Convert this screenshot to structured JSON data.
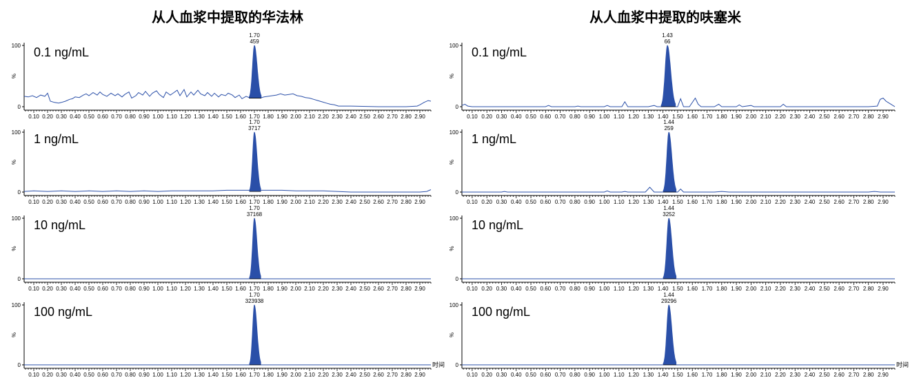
{
  "colors": {
    "peak": "#2a4fa8",
    "trace": "#2a4fa8",
    "axis": "#000000",
    "text": "#000000"
  },
  "chart_data": [
    {
      "type": "line",
      "title": "从人血浆中提取的华法林",
      "x_tick_labels": [
        "0.10",
        "0.20",
        "0.30",
        "0.40",
        "0.50",
        "0.60",
        "0.70",
        "0.80",
        "0.90",
        "1.00",
        "1.10",
        "1.20",
        "1.30",
        "1.40",
        "1.50",
        "1.60",
        "1.70",
        "1.80",
        "1.90",
        "2.00",
        "2.10",
        "2.20",
        "2.30",
        "2.40",
        "2.50",
        "2.60",
        "2.70",
        "2.80",
        "2.90"
      ],
      "x_axis_label": "时间",
      "y_tick_labels": [
        "100",
        "0"
      ],
      "y_axis_label": "%",
      "xlim": [
        0.03,
        2.98
      ],
      "ylim": [
        0,
        100
      ],
      "panels": [
        {
          "concentration": "0.1 ng/mL",
          "peak_rt": "1.70",
          "peak_area": "459",
          "peak": {
            "rt": 1.7,
            "height": 100,
            "width": 0.045,
            "area_baseline": 14
          },
          "noise": [
            [
              0.03,
              17
            ],
            [
              0.06,
              16
            ],
            [
              0.09,
              18
            ],
            [
              0.12,
              15
            ],
            [
              0.15,
              19
            ],
            [
              0.18,
              17
            ],
            [
              0.2,
              22
            ],
            [
              0.22,
              9
            ],
            [
              0.25,
              7
            ],
            [
              0.28,
              6
            ],
            [
              0.3,
              7
            ],
            [
              0.33,
              9
            ],
            [
              0.36,
              12
            ],
            [
              0.38,
              13
            ],
            [
              0.4,
              16
            ],
            [
              0.43,
              15
            ],
            [
              0.46,
              19
            ],
            [
              0.48,
              21
            ],
            [
              0.5,
              18
            ],
            [
              0.53,
              23
            ],
            [
              0.56,
              19
            ],
            [
              0.58,
              24
            ],
            [
              0.6,
              20
            ],
            [
              0.63,
              17
            ],
            [
              0.66,
              22
            ],
            [
              0.69,
              18
            ],
            [
              0.71,
              21
            ],
            [
              0.74,
              16
            ],
            [
              0.76,
              20
            ],
            [
              0.79,
              24
            ],
            [
              0.81,
              14
            ],
            [
              0.84,
              18
            ],
            [
              0.86,
              23
            ],
            [
              0.89,
              19
            ],
            [
              0.91,
              25
            ],
            [
              0.94,
              17
            ],
            [
              0.96,
              22
            ],
            [
              0.99,
              26
            ],
            [
              1.01,
              20
            ],
            [
              1.04,
              15
            ],
            [
              1.06,
              24
            ],
            [
              1.09,
              19
            ],
            [
              1.11,
              22
            ],
            [
              1.14,
              27
            ],
            [
              1.16,
              18
            ],
            [
              1.19,
              28
            ],
            [
              1.21,
              16
            ],
            [
              1.24,
              24
            ],
            [
              1.26,
              19
            ],
            [
              1.29,
              27
            ],
            [
              1.31,
              21
            ],
            [
              1.34,
              18
            ],
            [
              1.36,
              23
            ],
            [
              1.39,
              17
            ],
            [
              1.41,
              22
            ],
            [
              1.44,
              16
            ],
            [
              1.46,
              20
            ],
            [
              1.49,
              18
            ],
            [
              1.51,
              22
            ],
            [
              1.54,
              19
            ],
            [
              1.56,
              15
            ],
            [
              1.59,
              19
            ],
            [
              1.61,
              13
            ],
            [
              1.64,
              17
            ],
            [
              1.66,
              15
            ],
            [
              1.69,
              14
            ],
            [
              1.74,
              14
            ],
            [
              1.77,
              16
            ],
            [
              1.8,
              17
            ],
            [
              1.83,
              18
            ],
            [
              1.86,
              19
            ],
            [
              1.89,
              21
            ],
            [
              1.92,
              19
            ],
            [
              1.95,
              20
            ],
            [
              1.98,
              21
            ],
            [
              2.01,
              18
            ],
            [
              2.04,
              17
            ],
            [
              2.07,
              15
            ],
            [
              2.1,
              14
            ],
            [
              2.13,
              12
            ],
            [
              2.16,
              10
            ],
            [
              2.19,
              8
            ],
            [
              2.22,
              6
            ],
            [
              2.25,
              4
            ],
            [
              2.28,
              3
            ],
            [
              2.31,
              1
            ],
            [
              2.4,
              1
            ],
            [
              2.6,
              0
            ],
            [
              2.8,
              0
            ],
            [
              2.88,
              1
            ],
            [
              2.9,
              3
            ],
            [
              2.93,
              7
            ],
            [
              2.96,
              10
            ],
            [
              2.98,
              9
            ]
          ]
        },
        {
          "concentration": "1 ng/mL",
          "peak_rt": "1.70",
          "peak_area": "3717",
          "peak": {
            "rt": 1.7,
            "height": 100,
            "width": 0.042,
            "area_baseline": 1
          },
          "noise": [
            [
              0.03,
              1
            ],
            [
              0.1,
              2
            ],
            [
              0.2,
              1
            ],
            [
              0.3,
              2
            ],
            [
              0.4,
              1
            ],
            [
              0.5,
              2
            ],
            [
              0.6,
              1
            ],
            [
              0.7,
              2
            ],
            [
              0.8,
              1
            ],
            [
              0.9,
              2
            ],
            [
              1.0,
              1
            ],
            [
              1.1,
              2
            ],
            [
              1.2,
              2
            ],
            [
              1.3,
              2
            ],
            [
              1.4,
              2
            ],
            [
              1.5,
              3
            ],
            [
              1.6,
              3
            ],
            [
              1.66,
              3
            ],
            [
              1.74,
              3
            ],
            [
              1.8,
              3
            ],
            [
              1.9,
              3
            ],
            [
              2.0,
              2
            ],
            [
              2.1,
              2
            ],
            [
              2.2,
              2
            ],
            [
              2.3,
              1
            ],
            [
              2.4,
              0
            ],
            [
              2.6,
              0
            ],
            [
              2.8,
              0
            ],
            [
              2.9,
              0
            ],
            [
              2.95,
              1
            ],
            [
              2.98,
              4
            ]
          ]
        },
        {
          "concentration": "10 ng/mL",
          "peak_rt": "1.70",
          "peak_area": "37168",
          "peak": {
            "rt": 1.7,
            "height": 100,
            "width": 0.042,
            "area_baseline": 0
          },
          "noise": [
            [
              0.03,
              0
            ],
            [
              2.98,
              0
            ]
          ]
        },
        {
          "concentration": "100 ng/mL",
          "peak_rt": "1.70",
          "peak_area": "323938",
          "peak": {
            "rt": 1.7,
            "height": 100,
            "width": 0.042,
            "area_baseline": 0
          },
          "noise": [
            [
              0.03,
              0
            ],
            [
              2.98,
              0
            ]
          ]
        }
      ]
    },
    {
      "type": "line",
      "title": "从人血浆中提取的呋塞米",
      "x_tick_labels": [
        "0.10",
        "0.20",
        "0.30",
        "0.40",
        "0.50",
        "0.60",
        "0.70",
        "0.80",
        "0.90",
        "1.00",
        "1.10",
        "1.20",
        "1.30",
        "1.40",
        "1.50",
        "1.60",
        "1.70",
        "1.80",
        "1.90",
        "2.00",
        "2.10",
        "2.20",
        "2.30",
        "2.40",
        "2.50",
        "2.60",
        "2.70",
        "2.80",
        "2.90"
      ],
      "x_axis_label": "时间",
      "y_tick_labels": [
        "100",
        "0"
      ],
      "y_axis_label": "%",
      "xlim": [
        0.03,
        2.98
      ],
      "ylim": [
        0,
        100
      ],
      "panels": [
        {
          "concentration": "0.1 ng/mL",
          "peak_rt": "1.43",
          "peak_area": "66",
          "peak": {
            "rt": 1.43,
            "height": 100,
            "width": 0.05,
            "area_baseline": 0
          },
          "noise": [
            [
              0.03,
              2
            ],
            [
              0.05,
              4
            ],
            [
              0.07,
              1
            ],
            [
              0.1,
              0
            ],
            [
              0.6,
              0
            ],
            [
              0.62,
              2
            ],
            [
              0.64,
              0
            ],
            [
              0.8,
              0
            ],
            [
              0.82,
              1
            ],
            [
              0.84,
              0
            ],
            [
              1.0,
              0
            ],
            [
              1.02,
              2
            ],
            [
              1.04,
              0
            ],
            [
              1.12,
              0
            ],
            [
              1.14,
              8
            ],
            [
              1.16,
              0
            ],
            [
              1.3,
              0
            ],
            [
              1.34,
              2
            ],
            [
              1.36,
              0
            ],
            [
              1.5,
              0
            ],
            [
              1.52,
              13
            ],
            [
              1.54,
              0
            ],
            [
              1.58,
              0
            ],
            [
              1.62,
              14
            ],
            [
              1.64,
              4
            ],
            [
              1.66,
              0
            ],
            [
              1.75,
              0
            ],
            [
              1.78,
              4
            ],
            [
              1.8,
              0
            ],
            [
              1.9,
              0
            ],
            [
              1.92,
              3
            ],
            [
              1.94,
              0
            ],
            [
              2.0,
              2
            ],
            [
              2.02,
              0
            ],
            [
              2.2,
              0
            ],
            [
              2.22,
              4
            ],
            [
              2.24,
              0
            ],
            [
              2.8,
              0
            ],
            [
              2.86,
              1
            ],
            [
              2.88,
              12
            ],
            [
              2.9,
              14
            ],
            [
              2.92,
              9
            ],
            [
              2.94,
              6
            ],
            [
              2.96,
              3
            ],
            [
              2.98,
              0
            ]
          ]
        },
        {
          "concentration": "1 ng/mL",
          "peak_rt": "1.44",
          "peak_area": "259",
          "peak": {
            "rt": 1.44,
            "height": 100,
            "width": 0.045,
            "area_baseline": 0
          },
          "noise": [
            [
              0.03,
              0
            ],
            [
              0.3,
              0
            ],
            [
              0.32,
              1
            ],
            [
              0.34,
              0
            ],
            [
              1.0,
              0
            ],
            [
              1.02,
              2
            ],
            [
              1.04,
              0
            ],
            [
              1.12,
              0
            ],
            [
              1.14,
              1
            ],
            [
              1.16,
              0
            ],
            [
              1.28,
              0
            ],
            [
              1.31,
              8
            ],
            [
              1.34,
              0
            ],
            [
              1.5,
              0
            ],
            [
              1.52,
              5
            ],
            [
              1.54,
              0
            ],
            [
              1.75,
              0
            ],
            [
              1.8,
              1
            ],
            [
              1.85,
              0
            ],
            [
              2.8,
              0
            ],
            [
              2.84,
              1
            ],
            [
              2.88,
              0
            ],
            [
              2.98,
              0
            ]
          ]
        },
        {
          "concentration": "10 ng/mL",
          "peak_rt": "1.44",
          "peak_area": "3252",
          "peak": {
            "rt": 1.44,
            "height": 100,
            "width": 0.045,
            "area_baseline": 0
          },
          "noise": [
            [
              0.03,
              0
            ],
            [
              2.98,
              0
            ]
          ]
        },
        {
          "concentration": "100 ng/mL",
          "peak_rt": "1.44",
          "peak_area": "29296",
          "peak": {
            "rt": 1.44,
            "height": 100,
            "width": 0.045,
            "area_baseline": 0
          },
          "noise": [
            [
              0.03,
              0
            ],
            [
              2.98,
              0
            ]
          ]
        }
      ]
    }
  ]
}
